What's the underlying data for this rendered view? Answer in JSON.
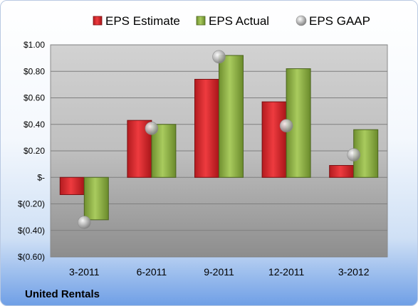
{
  "chart_data": {
    "type": "bar",
    "categories": [
      "3-2011",
      "6-2011",
      "9-2011",
      "12-2011",
      "3-2012"
    ],
    "series": [
      {
        "name": "EPS Estimate",
        "values": [
          -0.13,
          0.43,
          0.74,
          0.57,
          0.09
        ],
        "color": "#e0262b"
      },
      {
        "name": "EPS Actual",
        "values": [
          -0.32,
          0.4,
          0.92,
          0.82,
          0.36
        ],
        "color": "#92b64b"
      },
      {
        "name": "EPS GAAP",
        "values": [
          -0.34,
          0.37,
          0.91,
          0.39,
          0.17
        ],
        "color": "#bcbcbc",
        "marker": "sphere"
      }
    ],
    "ylim": [
      -0.6,
      1.0
    ],
    "yticks": [
      1.0,
      0.8,
      0.6,
      0.4,
      0.2,
      0.0,
      -0.2,
      -0.4,
      -0.6
    ],
    "ytick_labels": [
      "$1.00",
      "$0.80",
      "$0.60",
      "$0.40",
      "$0.20",
      "$-",
      "$(0.20)",
      "$(0.40)",
      "$(0.60)"
    ],
    "grid": true,
    "legend_position": "top"
  },
  "footer": {
    "company": "United Rentals"
  }
}
